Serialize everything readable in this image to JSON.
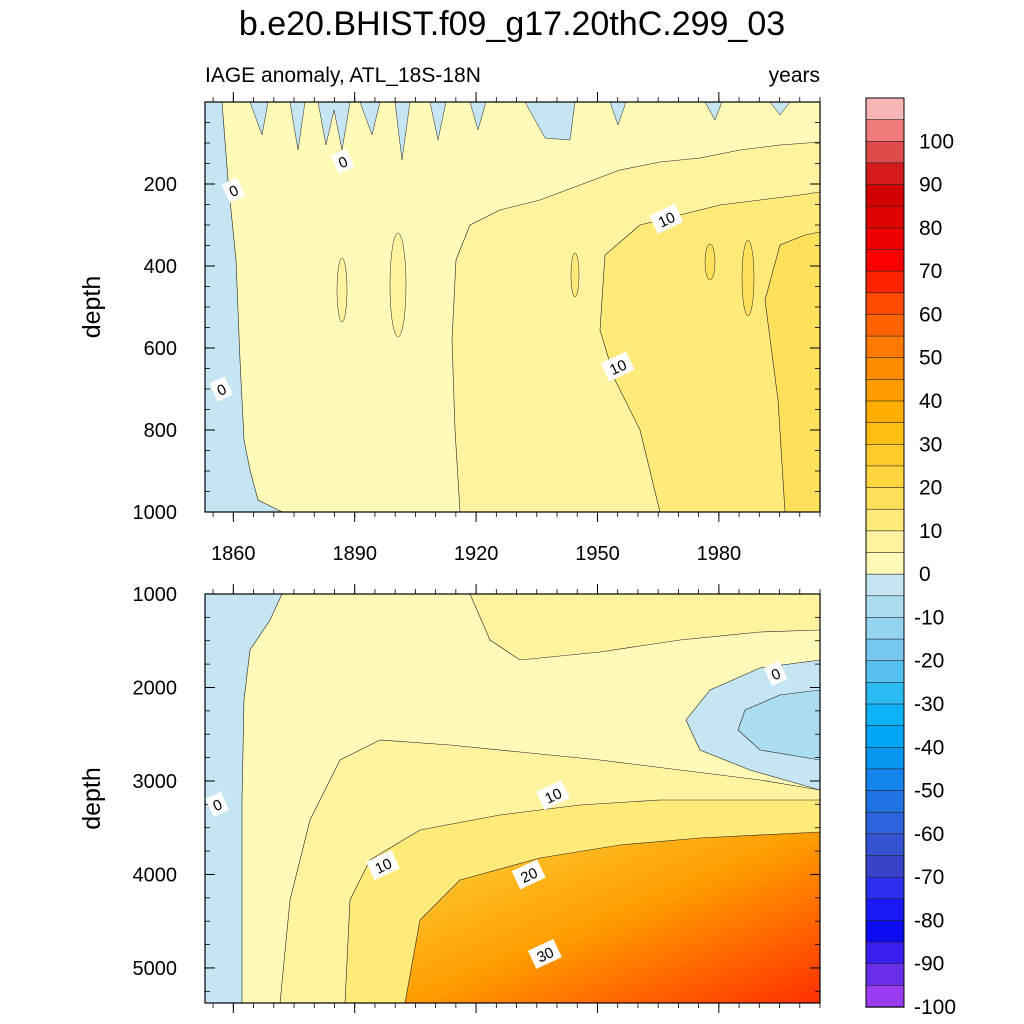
{
  "chart_data": [
    {
      "type": "heatmap",
      "title": "b.e20.BHIST.f09_g17.20thC.299_03",
      "left_subtitle": "IAGE anomaly, ATL_18S-18N",
      "right_subtitle": "years",
      "ylabel": "depth",
      "xlabel": "",
      "x_ticks": [
        1860,
        1890,
        1920,
        1950,
        1980
      ],
      "xlim": [
        1853,
        2005
      ],
      "y_ticks": [
        200,
        400,
        600,
        800,
        1000
      ],
      "ylim": [
        0,
        1000
      ],
      "y_reversed": true,
      "grid": false,
      "contour_labels": [
        {
          "text": "0",
          "x": 1860,
          "y": 215
        },
        {
          "text": "0",
          "x": 1887,
          "y": 145
        },
        {
          "text": "0",
          "x": 1857,
          "y": 700
        },
        {
          "text": "10",
          "x": 1967,
          "y": 285
        },
        {
          "text": "10",
          "x": 1955,
          "y": 645
        }
      ],
      "regions": [
        {
          "range": "-10 to 0",
          "where": "near-surface patches before ~2000 and a strip along 1853-1870 at all depths"
        },
        {
          "range": "0 to 5",
          "where": "upper ocean (0-250) and 1870-1915 below"
        },
        {
          "range": "5 to 10",
          "where": "1915-1955 below ~300"
        },
        {
          "range": "10 to 15",
          "where": "1955-1995 below ~250"
        },
        {
          "range": "15 to 20",
          "where": "after ~1995 below ~250"
        }
      ]
    },
    {
      "type": "heatmap",
      "ylabel": "depth",
      "xlabel": "",
      "x_ticks": [
        1860,
        1890,
        1920,
        1950,
        1980
      ],
      "xlim": [
        1853,
        2005
      ],
      "y_ticks": [
        1000,
        2000,
        3000,
        4000,
        5000
      ],
      "ylim": [
        1000,
        5375
      ],
      "y_reversed": true,
      "grid": false,
      "contour_labels": [
        {
          "text": "0",
          "x": 1856,
          "y": 3250
        },
        {
          "text": "0",
          "x": 1994,
          "y": 1850
        },
        {
          "text": "10",
          "x": 1939,
          "y": 3150
        },
        {
          "text": "10",
          "x": 1897,
          "y": 3900
        },
        {
          "text": "20",
          "x": 1933,
          "y": 4000
        },
        {
          "text": "30",
          "x": 1937,
          "y": 4850
        }
      ],
      "regions": [
        {
          "range": "-10 to 0",
          "where": "1853-1862 column full depth; tongue 1975-2005 at 1900-2900"
        },
        {
          "range": "-20 to -10",
          "where": "core near 2000, 2100-2700"
        },
        {
          "range": "0 to 5",
          "where": "1862-1890 and 1000-2800 elsewhere"
        },
        {
          "range": "5 to 10",
          "where": "2800-3400 band, 1920-1990 near 1000-1700"
        },
        {
          "range": "10 to 40",
          "where": "deep ocean below ~3400, increasing toward 2005"
        }
      ]
    }
  ],
  "colorbar": {
    "labels": [
      "100",
      "90",
      "80",
      "70",
      "60",
      "50",
      "40",
      "30",
      "20",
      "10",
      "0",
      "-10",
      "-20",
      "-30",
      "-40",
      "-50",
      "-60",
      "-70",
      "-80",
      "-90",
      "-100"
    ],
    "colors": [
      "#f7b6b6",
      "#ef7b7b",
      "#df4a4a",
      "#d41a1a",
      "#d20000",
      "#e10000",
      "#ee0000",
      "#fa0000",
      "#ff2200",
      "#ff4a00",
      "#ff6300",
      "#ff7800",
      "#ff8b00",
      "#ff9d00",
      "#ffae00",
      "#ffbe10",
      "#ffcb2a",
      "#ffd640",
      "#ffe05a",
      "#ffea7a",
      "#fff3a0",
      "#fffab8",
      "#c5e5f2",
      "#acdcef",
      "#94d4ef",
      "#78c9ef",
      "#56c0f0",
      "#2cbaf2",
      "#0eb2f8",
      "#00a6f6",
      "#0896f1",
      "#1584ec",
      "#2073e5",
      "#2d63dc",
      "#3553d2",
      "#3943ca",
      "#2d2fee",
      "#1818f8",
      "#0c0cf3",
      "#3a1ef0",
      "#6a2eea",
      "#9a3cf2"
    ]
  }
}
